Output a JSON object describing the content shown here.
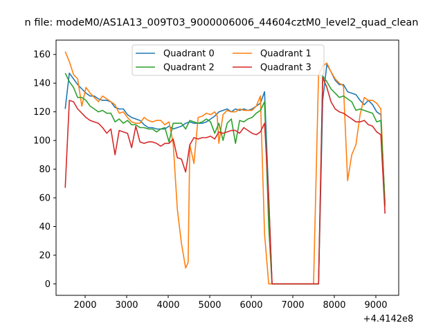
{
  "chart_data": {
    "type": "line",
    "title": "n file: modeM0/AS1A13_009T03_9000006006_44604cztM0_level2_quad_clean",
    "xlabel": "",
    "ylabel": "",
    "x_offset_label": "+4.4142e8",
    "xlim": [
      1300,
      9550
    ],
    "ylim": [
      -8,
      170
    ],
    "x_ticks": [
      2000,
      3000,
      4000,
      5000,
      6000,
      7000,
      8000,
      9000
    ],
    "y_ticks": [
      0,
      20,
      40,
      60,
      80,
      100,
      120,
      140,
      160
    ],
    "legend_position": "upper center",
    "grid": false,
    "series": [
      {
        "name": "Quadrant 0",
        "color": "#1f77b4",
        "x": [
          1520,
          1620,
          1720,
          1820,
          1920,
          2020,
          2120,
          2220,
          2320,
          2420,
          2520,
          2620,
          2720,
          2820,
          2920,
          3020,
          3120,
          3220,
          3320,
          3420,
          3520,
          3620,
          3720,
          3820,
          3920,
          4020,
          4120,
          4220,
          4320,
          4420,
          4520,
          4620,
          4720,
          4820,
          4920,
          5020,
          5120,
          5220,
          5320,
          5420,
          5520,
          5620,
          5720,
          5820,
          5920,
          6020,
          6120,
          6220,
          6320,
          6420,
          6500,
          6600,
          6700,
          6800,
          6900,
          7000,
          7100,
          7200,
          7300,
          7400,
          7500,
          7620,
          7720,
          7820,
          7920,
          8020,
          8120,
          8220,
          8320,
          8420,
          8520,
          8620,
          8720,
          8820,
          8920,
          9020,
          9120,
          9220
        ],
        "y": [
          122,
          147,
          143,
          139,
          136,
          133,
          131,
          131,
          129,
          128,
          128,
          127,
          123,
          122,
          122,
          118,
          116,
          115,
          114,
          111,
          109,
          109,
          108,
          108,
          108,
          110,
          108,
          109,
          110,
          112,
          113,
          112,
          112,
          112,
          113,
          115,
          117,
          120,
          121,
          122,
          120,
          122,
          121,
          122,
          121,
          122,
          124,
          126,
          134,
          60,
          0,
          0,
          0,
          0,
          0,
          0,
          0,
          0,
          0,
          0,
          0,
          0,
          128,
          153,
          148,
          142,
          139,
          139,
          134,
          133,
          132,
          128,
          125,
          128,
          125,
          120,
          118,
          56
        ]
      },
      {
        "name": "Quadrant 1",
        "color": "#ff7f0e",
        "x": [
          1520,
          1620,
          1720,
          1820,
          1920,
          2020,
          2120,
          2220,
          2320,
          2420,
          2520,
          2620,
          2720,
          2820,
          2920,
          3020,
          3120,
          3220,
          3320,
          3420,
          3520,
          3620,
          3720,
          3820,
          3920,
          4020,
          4120,
          4220,
          4320,
          4420,
          4480,
          4520,
          4620,
          4720,
          4820,
          4920,
          5020,
          5120,
          5180,
          5220,
          5320,
          5420,
          5520,
          5620,
          5720,
          5820,
          5920,
          6020,
          6120,
          6220,
          6320,
          6420,
          6500,
          6600,
          6700,
          6800,
          6900,
          7000,
          7100,
          7200,
          7300,
          7400,
          7500,
          7620,
          7720,
          7820,
          7920,
          8020,
          8120,
          8220,
          8320,
          8420,
          8520,
          8620,
          8720,
          8820,
          8920,
          9020,
          9120,
          9220
        ],
        "y": [
          162,
          155,
          146,
          143,
          124,
          137,
          133,
          130,
          127,
          131,
          129,
          127,
          125,
          119,
          120,
          116,
          113,
          112,
          112,
          116,
          114,
          113,
          114,
          114,
          111,
          113,
          98,
          52,
          28,
          11,
          15,
          97,
          84,
          116,
          117,
          119,
          118,
          120,
          117,
          98,
          118,
          121,
          120,
          120,
          122,
          121,
          121,
          121,
          124,
          131,
          35,
          0,
          0,
          0,
          0,
          0,
          0,
          0,
          0,
          0,
          0,
          0,
          0,
          146,
          152,
          154,
          148,
          143,
          140,
          138,
          72,
          90,
          97,
          118,
          130,
          128,
          128,
          126,
          122,
          54
        ]
      },
      {
        "name": "Quadrant 2",
        "color": "#2ca02c",
        "x": [
          1520,
          1620,
          1720,
          1820,
          1920,
          2020,
          2120,
          2220,
          2320,
          2420,
          2520,
          2620,
          2720,
          2820,
          2920,
          3020,
          3120,
          3220,
          3320,
          3420,
          3520,
          3620,
          3720,
          3820,
          3920,
          4020,
          4120,
          4220,
          4320,
          4420,
          4520,
          4620,
          4720,
          4820,
          4920,
          5020,
          5120,
          5220,
          5320,
          5420,
          5520,
          5620,
          5720,
          5820,
          5920,
          6020,
          6120,
          6220,
          6320,
          6420,
          6500,
          6600,
          6700,
          6800,
          6900,
          7000,
          7100,
          7200,
          7300,
          7400,
          7500,
          7620,
          7720,
          7820,
          7920,
          8020,
          8120,
          8220,
          8320,
          8420,
          8520,
          8620,
          8720,
          8820,
          8920,
          9020,
          9120,
          9220
        ],
        "y": [
          147,
          141,
          137,
          130,
          130,
          128,
          124,
          122,
          120,
          121,
          119,
          119,
          113,
          115,
          112,
          114,
          111,
          111,
          109,
          109,
          108,
          108,
          106,
          108,
          109,
          99,
          112,
          112,
          112,
          108,
          114,
          113,
          112,
          113,
          115,
          113,
          105,
          112,
          100,
          112,
          115,
          98,
          114,
          113,
          115,
          116,
          119,
          121,
          127,
          40,
          0,
          0,
          0,
          0,
          0,
          0,
          0,
          0,
          0,
          0,
          0,
          0,
          145,
          141,
          136,
          133,
          130,
          131,
          129,
          127,
          121,
          122,
          121,
          120,
          119,
          113,
          114,
          55
        ]
      },
      {
        "name": "Quadrant 3",
        "color": "#d62728",
        "x": [
          1520,
          1620,
          1720,
          1820,
          1920,
          2020,
          2120,
          2220,
          2320,
          2420,
          2520,
          2620,
          2720,
          2820,
          2920,
          3020,
          3120,
          3220,
          3320,
          3420,
          3520,
          3620,
          3720,
          3820,
          3920,
          4020,
          4120,
          4220,
          4320,
          4420,
          4520,
          4620,
          4720,
          4820,
          4920,
          5020,
          5120,
          5220,
          5320,
          5420,
          5520,
          5620,
          5720,
          5820,
          5920,
          6020,
          6120,
          6220,
          6320,
          6420,
          6500,
          6600,
          6700,
          6800,
          6900,
          7000,
          7100,
          7200,
          7300,
          7400,
          7500,
          7620,
          7720,
          7820,
          7920,
          8020,
          8120,
          8220,
          8320,
          8420,
          8520,
          8620,
          8720,
          8820,
          8920,
          9020,
          9120,
          9220
        ],
        "y": [
          67,
          128,
          127,
          122,
          119,
          116,
          114,
          113,
          112,
          109,
          105,
          108,
          90,
          107,
          106,
          105,
          95,
          110,
          99,
          98,
          99,
          99,
          98,
          96,
          98,
          98,
          101,
          88,
          87,
          78,
          97,
          102,
          101,
          102,
          102,
          103,
          101,
          106,
          105,
          106,
          107,
          107,
          105,
          109,
          107,
          105,
          104,
          106,
          112,
          60,
          0,
          0,
          0,
          0,
          0,
          0,
          0,
          0,
          0,
          0,
          0,
          0,
          144,
          137,
          127,
          122,
          120,
          119,
          117,
          115,
          113,
          113,
          114,
          111,
          110,
          106,
          104,
          49
        ]
      }
    ]
  }
}
